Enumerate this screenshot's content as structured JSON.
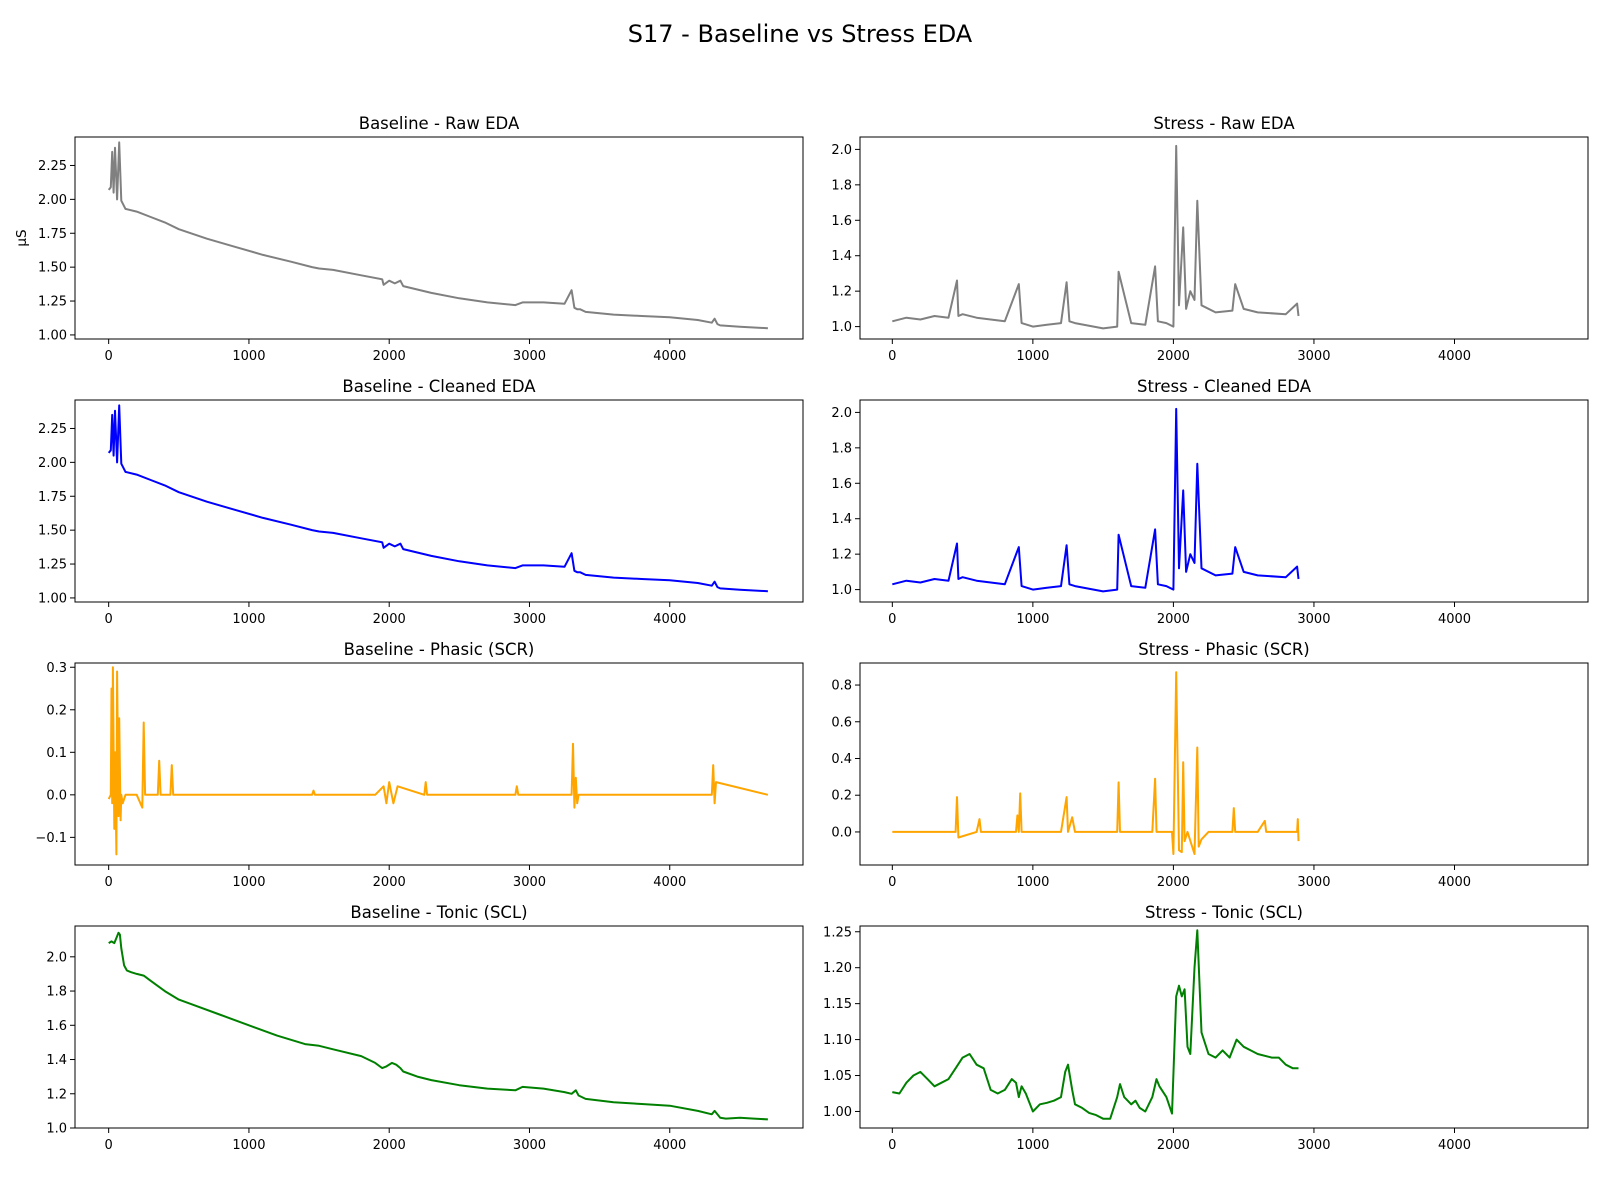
{
  "suptitle": "S17 - Baseline vs Stress EDA",
  "chart_data": [
    {
      "type": "line",
      "title": "Baseline - Raw EDA",
      "ylabel": "μS",
      "color": "#808080",
      "xlim": [
        -240,
        4950
      ],
      "ylim": [
        0.97,
        2.46
      ],
      "xticks": [
        0,
        1000,
        2000,
        3000,
        4000
      ],
      "yticks": [
        1.0,
        1.25,
        1.5,
        1.75,
        2.0,
        2.25
      ],
      "x": [
        0,
        15,
        25,
        35,
        45,
        60,
        75,
        90,
        120,
        200,
        300,
        400,
        500,
        700,
        900,
        1100,
        1300,
        1450,
        1500,
        1600,
        1800,
        1950,
        1960,
        2000,
        2040,
        2080,
        2100,
        2300,
        2500,
        2700,
        2900,
        2950,
        3100,
        3250,
        3300,
        3320,
        3340,
        3360,
        3400,
        3500,
        3600,
        3800,
        4000,
        4200,
        4300,
        4320,
        4340,
        4360,
        4500,
        4700
      ],
      "y": [
        2.07,
        2.09,
        2.35,
        2.05,
        2.38,
        2.0,
        2.42,
        1.99,
        1.93,
        1.91,
        1.87,
        1.83,
        1.78,
        1.71,
        1.65,
        1.59,
        1.54,
        1.5,
        1.49,
        1.48,
        1.44,
        1.41,
        1.37,
        1.4,
        1.38,
        1.4,
        1.36,
        1.31,
        1.27,
        1.24,
        1.22,
        1.24,
        1.24,
        1.23,
        1.33,
        1.2,
        1.19,
        1.19,
        1.17,
        1.16,
        1.15,
        1.14,
        1.13,
        1.11,
        1.09,
        1.12,
        1.08,
        1.07,
        1.06,
        1.05
      ]
    },
    {
      "type": "line",
      "title": "Stress - Raw EDA",
      "color": "#808080",
      "xlim": [
        -230,
        4950
      ],
      "ylim": [
        0.93,
        2.07
      ],
      "xticks": [
        0,
        1000,
        2000,
        3000,
        4000
      ],
      "yticks": [
        1.0,
        1.2,
        1.4,
        1.6,
        1.8,
        2.0
      ],
      "x": [
        0,
        100,
        200,
        300,
        400,
        460,
        470,
        500,
        600,
        800,
        900,
        920,
        1000,
        1100,
        1200,
        1240,
        1260,
        1300,
        1500,
        1600,
        1610,
        1700,
        1800,
        1870,
        1890,
        1950,
        2000,
        2020,
        2040,
        2070,
        2090,
        2120,
        2150,
        2170,
        2200,
        2300,
        2420,
        2440,
        2500,
        2600,
        2800,
        2880,
        2890
      ],
      "y": [
        1.03,
        1.05,
        1.04,
        1.06,
        1.05,
        1.26,
        1.06,
        1.07,
        1.05,
        1.03,
        1.24,
        1.02,
        1.0,
        1.01,
        1.02,
        1.25,
        1.03,
        1.02,
        0.99,
        1.0,
        1.31,
        1.02,
        1.01,
        1.34,
        1.03,
        1.02,
        1.0,
        2.02,
        1.12,
        1.56,
        1.1,
        1.2,
        1.15,
        1.71,
        1.12,
        1.08,
        1.09,
        1.24,
        1.1,
        1.08,
        1.07,
        1.13,
        1.06
      ]
    },
    {
      "type": "line",
      "title": "Baseline - Cleaned EDA",
      "color": "#0000ff",
      "xlim": [
        -240,
        4950
      ],
      "ylim": [
        0.97,
        2.46
      ],
      "xticks": [
        0,
        1000,
        2000,
        3000,
        4000
      ],
      "yticks": [
        1.0,
        1.25,
        1.5,
        1.75,
        2.0,
        2.25
      ],
      "x": [
        0,
        15,
        25,
        35,
        45,
        60,
        75,
        90,
        120,
        200,
        300,
        400,
        500,
        700,
        900,
        1100,
        1300,
        1450,
        1500,
        1600,
        1800,
        1950,
        1960,
        2000,
        2040,
        2080,
        2100,
        2300,
        2500,
        2700,
        2900,
        2950,
        3100,
        3250,
        3300,
        3320,
        3340,
        3360,
        3400,
        3500,
        3600,
        3800,
        4000,
        4200,
        4300,
        4320,
        4340,
        4360,
        4500,
        4700
      ],
      "y": [
        2.07,
        2.09,
        2.35,
        2.05,
        2.38,
        2.0,
        2.42,
        1.99,
        1.93,
        1.91,
        1.87,
        1.83,
        1.78,
        1.71,
        1.65,
        1.59,
        1.54,
        1.5,
        1.49,
        1.48,
        1.44,
        1.41,
        1.37,
        1.4,
        1.38,
        1.4,
        1.36,
        1.31,
        1.27,
        1.24,
        1.22,
        1.24,
        1.24,
        1.23,
        1.33,
        1.2,
        1.19,
        1.19,
        1.17,
        1.16,
        1.15,
        1.14,
        1.13,
        1.11,
        1.09,
        1.12,
        1.08,
        1.07,
        1.06,
        1.05
      ]
    },
    {
      "type": "line",
      "title": "Stress - Cleaned EDA",
      "color": "#0000ff",
      "xlim": [
        -230,
        4950
      ],
      "ylim": [
        0.93,
        2.07
      ],
      "xticks": [
        0,
        1000,
        2000,
        3000,
        4000
      ],
      "yticks": [
        1.0,
        1.2,
        1.4,
        1.6,
        1.8,
        2.0
      ],
      "x": [
        0,
        100,
        200,
        300,
        400,
        460,
        470,
        500,
        600,
        800,
        900,
        920,
        1000,
        1100,
        1200,
        1240,
        1260,
        1300,
        1500,
        1600,
        1610,
        1700,
        1800,
        1870,
        1890,
        1950,
        2000,
        2020,
        2040,
        2070,
        2090,
        2120,
        2150,
        2170,
        2200,
        2300,
        2420,
        2440,
        2500,
        2600,
        2800,
        2880,
        2890
      ],
      "y": [
        1.03,
        1.05,
        1.04,
        1.06,
        1.05,
        1.26,
        1.06,
        1.07,
        1.05,
        1.03,
        1.24,
        1.02,
        1.0,
        1.01,
        1.02,
        1.25,
        1.03,
        1.02,
        0.99,
        1.0,
        1.31,
        1.02,
        1.01,
        1.34,
        1.03,
        1.02,
        1.0,
        2.02,
        1.12,
        1.56,
        1.1,
        1.2,
        1.15,
        1.71,
        1.12,
        1.08,
        1.09,
        1.24,
        1.1,
        1.08,
        1.07,
        1.13,
        1.06
      ]
    },
    {
      "type": "line",
      "title": "Baseline - Phasic (SCR)",
      "color": "#ffa500",
      "xlim": [
        -240,
        4950
      ],
      "ylim": [
        -0.165,
        0.31
      ],
      "xticks": [
        0,
        1000,
        2000,
        3000,
        4000
      ],
      "yticks": [
        -0.1,
        0.0,
        0.1,
        0.2,
        0.3
      ],
      "x": [
        0,
        15,
        20,
        25,
        30,
        40,
        45,
        55,
        60,
        70,
        75,
        85,
        90,
        100,
        120,
        200,
        240,
        250,
        260,
        350,
        360,
        370,
        440,
        450,
        460,
        600,
        1000,
        1450,
        1460,
        1470,
        1900,
        1960,
        1980,
        2000,
        2030,
        2060,
        2250,
        2260,
        2270,
        2900,
        2910,
        2920,
        3300,
        3310,
        3320,
        3330,
        3340,
        3350,
        4300,
        4310,
        4320,
        4330,
        4700
      ],
      "y": [
        -0.01,
        0.0,
        0.25,
        -0.02,
        0.3,
        -0.08,
        0.1,
        -0.14,
        0.29,
        -0.05,
        0.18,
        -0.06,
        0.0,
        -0.02,
        0.0,
        0.0,
        -0.03,
        0.17,
        0.0,
        0.0,
        0.08,
        0.0,
        0.0,
        0.07,
        0.0,
        0.0,
        0.0,
        0.0,
        0.01,
        0.0,
        0.0,
        0.02,
        -0.02,
        0.03,
        -0.02,
        0.02,
        0.0,
        0.03,
        0.0,
        0.0,
        0.02,
        0.0,
        0.0,
        0.12,
        -0.03,
        0.04,
        -0.02,
        0.0,
        0.0,
        0.07,
        -0.02,
        0.03,
        0.0
      ]
    },
    {
      "type": "line",
      "title": "Stress - Phasic (SCR)",
      "color": "#ffa500",
      "xlim": [
        -230,
        4950
      ],
      "ylim": [
        -0.18,
        0.92
      ],
      "xticks": [
        0,
        1000,
        2000,
        3000,
        4000
      ],
      "yticks": [
        0.0,
        0.2,
        0.4,
        0.6,
        0.8
      ],
      "x": [
        0,
        200,
        450,
        460,
        470,
        600,
        620,
        630,
        880,
        890,
        900,
        910,
        920,
        1200,
        1240,
        1250,
        1280,
        1300,
        1600,
        1610,
        1620,
        1850,
        1870,
        1880,
        1990,
        2000,
        2020,
        2040,
        2060,
        2070,
        2080,
        2100,
        2150,
        2170,
        2180,
        2200,
        2250,
        2420,
        2430,
        2440,
        2600,
        2650,
        2660,
        2880,
        2885,
        2890
      ],
      "y": [
        0.0,
        0.0,
        0.0,
        0.19,
        -0.03,
        0.0,
        0.07,
        0.0,
        0.0,
        0.09,
        0.0,
        0.21,
        0.0,
        0.0,
        0.19,
        0.0,
        0.08,
        0.0,
        0.0,
        0.27,
        0.0,
        0.0,
        0.29,
        0.0,
        0.0,
        -0.12,
        0.87,
        -0.1,
        -0.11,
        0.38,
        -0.05,
        0.0,
        -0.12,
        0.46,
        -0.08,
        -0.04,
        0.0,
        0.0,
        0.13,
        0.0,
        0.0,
        0.06,
        0.0,
        0.0,
        0.07,
        -0.05
      ]
    },
    {
      "type": "line",
      "title": "Baseline - Tonic (SCL)",
      "color": "#008000",
      "xlim": [
        -240,
        4950
      ],
      "ylim": [
        1.0,
        2.18
      ],
      "xticks": [
        0,
        1000,
        2000,
        3000,
        4000
      ],
      "yticks": [
        1.0,
        1.2,
        1.4,
        1.6,
        1.8,
        2.0
      ],
      "x": [
        0,
        20,
        40,
        60,
        70,
        80,
        90,
        110,
        130,
        160,
        200,
        250,
        300,
        400,
        500,
        600,
        800,
        1000,
        1200,
        1400,
        1500,
        1600,
        1800,
        1900,
        1950,
        1980,
        2020,
        2050,
        2080,
        2100,
        2200,
        2300,
        2500,
        2700,
        2900,
        2950,
        3100,
        3250,
        3300,
        3330,
        3350,
        3400,
        3600,
        3800,
        4000,
        4200,
        4300,
        4320,
        4340,
        4360,
        4400,
        4500,
        4600,
        4700
      ],
      "y": [
        2.08,
        2.09,
        2.08,
        2.12,
        2.14,
        2.13,
        2.05,
        1.95,
        1.92,
        1.91,
        1.9,
        1.89,
        1.86,
        1.8,
        1.75,
        1.72,
        1.66,
        1.6,
        1.54,
        1.49,
        1.48,
        1.46,
        1.42,
        1.38,
        1.35,
        1.36,
        1.38,
        1.37,
        1.35,
        1.33,
        1.3,
        1.28,
        1.25,
        1.23,
        1.22,
        1.24,
        1.23,
        1.21,
        1.2,
        1.22,
        1.19,
        1.17,
        1.15,
        1.14,
        1.13,
        1.1,
        1.08,
        1.1,
        1.08,
        1.06,
        1.055,
        1.06,
        1.055,
        1.05
      ]
    },
    {
      "type": "line",
      "title": "Stress - Tonic (SCL)",
      "color": "#008000",
      "xlim": [
        -230,
        4950
      ],
      "ylim": [
        0.977,
        1.258
      ],
      "xticks": [
        0,
        1000,
        2000,
        3000,
        4000
      ],
      "yticks": [
        1.0,
        1.05,
        1.1,
        1.15,
        1.2,
        1.25
      ],
      "x": [
        0,
        50,
        100,
        150,
        200,
        250,
        300,
        350,
        400,
        450,
        500,
        550,
        600,
        650,
        700,
        750,
        800,
        850,
        880,
        900,
        920,
        950,
        1000,
        1050,
        1100,
        1150,
        1200,
        1230,
        1250,
        1280,
        1300,
        1350,
        1400,
        1450,
        1500,
        1550,
        1600,
        1620,
        1650,
        1700,
        1730,
        1760,
        1800,
        1850,
        1880,
        1900,
        1950,
        1990,
        2020,
        2040,
        2060,
        2080,
        2100,
        2120,
        2150,
        2170,
        2200,
        2250,
        2300,
        2350,
        2400,
        2450,
        2500,
        2550,
        2600,
        2700,
        2750,
        2800,
        2850,
        2890
      ],
      "y": [
        1.027,
        1.025,
        1.04,
        1.05,
        1.055,
        1.045,
        1.035,
        1.04,
        1.045,
        1.06,
        1.075,
        1.08,
        1.065,
        1.06,
        1.03,
        1.025,
        1.03,
        1.045,
        1.04,
        1.02,
        1.035,
        1.025,
        1.0,
        1.01,
        1.012,
        1.015,
        1.02,
        1.055,
        1.065,
        1.03,
        1.01,
        1.005,
        0.998,
        0.995,
        0.99,
        0.99,
        1.02,
        1.038,
        1.02,
        1.01,
        1.015,
        1.005,
        1.0,
        1.02,
        1.045,
        1.035,
        1.02,
        0.997,
        1.16,
        1.175,
        1.16,
        1.17,
        1.09,
        1.08,
        1.2,
        1.252,
        1.11,
        1.08,
        1.075,
        1.085,
        1.075,
        1.1,
        1.09,
        1.085,
        1.08,
        1.075,
        1.075,
        1.065,
        1.06,
        1.06
      ]
    }
  ]
}
